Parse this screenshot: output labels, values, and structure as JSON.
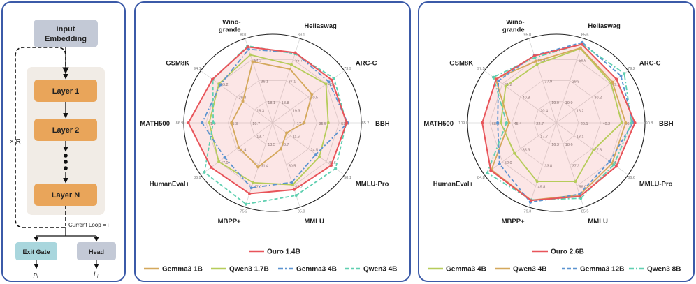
{
  "arch": {
    "input_embedding": [
      "Input",
      "Embedding"
    ],
    "layer1": "Layer 1",
    "layer2": "Layer 2",
    "layerN": "Layer N",
    "loop_label": "× R",
    "current_loop": "Current Loop = i",
    "exit_gate": "Exit Gate",
    "head": "Head",
    "exit_output": "p",
    "exit_sub": "i",
    "head_output": "L",
    "head_sub": "i",
    "colors": {
      "layer": "#e9a55a",
      "embed": "#c3c9d6",
      "exit": "#a9d6dd",
      "head": "#c3c9d6",
      "bg": "#f1ece6"
    }
  },
  "chart_data": [
    {
      "type": "radar",
      "axes": [
        "MMLU",
        "MMLU-Pro",
        "BBH",
        "ARC-C",
        "Hellaswag",
        "Wino-grande",
        "GSM8K",
        "MATH500",
        "HumanEval+",
        "MBPP+"
      ],
      "axis_max_labels": [
        "85.0",
        "58.1",
        "85.2",
        "73.9",
        "89.1",
        "80.0",
        "94.1",
        "86.9",
        "86.9",
        "75.2"
      ],
      "ring_labels": [
        [
          "33.7",
          "50.5",
          "67.2"
        ],
        [
          "11.6",
          "24.5",
          "48.6"
        ],
        [
          "17.0",
          "35.5",
          "53.5"
        ],
        [
          "19.3",
          "30.5",
          "45.7"
        ],
        [
          "18.8",
          "37.1",
          "55.7"
        ],
        [
          "18.1",
          "36.1",
          "54.2"
        ],
        [
          "19.3",
          "39.3",
          "59.2"
        ],
        [
          "19.7",
          "21.3",
          "41.0"
        ],
        [
          "13.7",
          "31.4",
          "47.0"
        ],
        [
          "13.5",
          "31.4",
          "47.0"
        ]
      ],
      "series": [
        {
          "name": "Ouro 1.4B",
          "color": "#e8545a",
          "style": "solid",
          "fill": true,
          "values": [
            67.4,
            47.5,
            71.1,
            60.9,
            74.1,
            72.0,
            78.8,
            82.4,
            74.4,
            63.2
          ]
        },
        {
          "name": "Gemma3 1B",
          "color": "#d4a85c",
          "style": "solid",
          "fill": false,
          "values": [
            26.3,
            11.3,
            30.4,
            40.5,
            56.7,
            58.0,
            38.9,
            40.2,
            41.0,
            39.5
          ]
        },
        {
          "name": "Qwen3 1.7B",
          "color": "#b6cc5a",
          "style": "solid",
          "fill": false,
          "values": [
            62.5,
            37.9,
            53.5,
            55.0,
            61.4,
            64.6,
            70.3,
            62.0,
            65.0,
            53.4
          ]
        },
        {
          "name": "Gemma3 4B",
          "color": "#5b93d0",
          "style": "dashdot",
          "fill": false,
          "values": [
            60.0,
            35.1,
            72.1,
            58.0,
            74.0,
            69.8,
            68.6,
            68.9,
            57.9,
            58.0
          ]
        },
        {
          "name": "Qwen3 4B",
          "color": "#5fcfb0",
          "style": "dashed",
          "fill": false,
          "values": [
            73.2,
            51.0,
            70.9,
            63.3,
            73.0,
            72.9,
            78.2,
            58.1,
            82.5,
            72.6
          ]
        }
      ],
      "legend_rows": [
        [
          "Ouro 1.4B"
        ],
        [
          "Gemma3 1B",
          "Qwen3 1.7B",
          "Gemma3 4B",
          "Qwen3 4B"
        ]
      ]
    },
    {
      "type": "radar",
      "axes": [
        "MMLU",
        "MMLU-Pro",
        "BBH",
        "ARC-C",
        "Hellaswag",
        "Wino-grande",
        "GSM8K",
        "MATH500",
        "HumanEval+",
        "MBPP+"
      ],
      "axis_max_labels": [
        "85.5",
        "66.6",
        "90.8",
        "79.2",
        "85.6",
        "95.0",
        "97.5",
        "109.0",
        "84.8",
        "79.3"
      ],
      "ring_labels": [
        [
          "18.6",
          "37.3",
          "56.0"
        ],
        [
          "13.1",
          "27.8",
          "41.6"
        ],
        [
          "20.1",
          "40.2",
          "60.3"
        ],
        [
          "18.2",
          "30.2",
          "49.0"
        ],
        [
          "19.9",
          "29.8",
          "59.6"
        ],
        [
          "19.0",
          "37.9",
          "56.9"
        ],
        [
          "20.4",
          "40.8",
          "61.2"
        ],
        [
          "22.7",
          "45.4",
          "68.1"
        ],
        [
          "17.7",
          "35.3",
          "52.0"
        ],
        [
          "16.3",
          "33.8",
          "49.8"
        ]
      ],
      "series": [
        {
          "name": "Ouro 2.6B",
          "color": "#e8545a",
          "style": "solid",
          "fill": true,
          "values": [
            74.6,
            55.7,
            80.5,
            66.4,
            79.7,
            75.6,
            81.6,
            90.9,
            77.4,
            73.0
          ]
        },
        {
          "name": "Gemma3 4B",
          "color": "#b6cc5a",
          "style": "solid",
          "fill": false,
          "values": [
            59.5,
            34.6,
            66.9,
            60.5,
            75.5,
            66.0,
            68.6,
            68.1,
            49.4,
            55.2
          ]
        },
        {
          "name": "Qwen3 4B",
          "color": "#d4a85c",
          "style": "solid",
          "fill": false,
          "values": [
            73.2,
            51.8,
            71.0,
            62.0,
            76.1,
            69.4,
            82.3,
            58.0,
            76.5,
            72.8
          ]
        },
        {
          "name": "Gemma3 12B",
          "color": "#5b93d0",
          "style": "dashed",
          "fill": false,
          "values": [
            72.4,
            49.4,
            78.4,
            71.3,
            81.6,
            76.0,
            78.6,
            72.0,
            67.0,
            74.8
          ]
        },
        {
          "name": "Qwen3 8B",
          "color": "#5fcfb0",
          "style": "dashdot",
          "fill": false,
          "values": [
            76.6,
            53.5,
            77.1,
            75.0,
            80.0,
            73.7,
            85.4,
            61.0,
            81.5,
            72.5
          ]
        }
      ],
      "legend_rows": [
        [
          "Ouro 2.6B"
        ],
        [
          "Gemma3 4B",
          "Qwen3 4B",
          "Gemma3 12B",
          "Qwen3 8B"
        ]
      ]
    }
  ]
}
